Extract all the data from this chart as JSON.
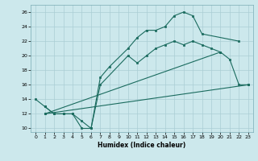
{
  "xlabel": "Humidex (Indice chaleur)",
  "bg_color": "#cce8ec",
  "grid_color": "#aacdd4",
  "line_color": "#1a6b5e",
  "xlim": [
    -0.5,
    23.5
  ],
  "ylim": [
    9.5,
    27.0
  ],
  "xticks": [
    0,
    1,
    2,
    3,
    4,
    5,
    6,
    7,
    8,
    9,
    10,
    11,
    12,
    13,
    14,
    15,
    16,
    17,
    18,
    19,
    20,
    21,
    22,
    23
  ],
  "yticks": [
    10,
    12,
    14,
    16,
    18,
    20,
    22,
    24,
    26
  ],
  "line1_x": [
    0,
    1,
    2,
    3,
    4,
    5,
    6,
    7,
    8,
    10,
    11,
    12,
    13,
    14,
    15,
    16,
    17,
    18,
    22
  ],
  "line1_y": [
    14,
    13,
    12,
    12,
    12,
    10,
    10,
    17,
    18.5,
    21,
    22.5,
    23.5,
    23.5,
    24,
    25.5,
    26,
    25.5,
    23,
    22
  ],
  "line2_x": [
    1,
    2,
    3,
    4,
    5,
    6,
    7,
    10,
    11,
    12,
    13,
    14,
    15,
    16,
    17,
    18,
    19,
    20,
    21,
    22,
    23
  ],
  "line2_y": [
    13,
    12,
    12,
    12,
    11,
    10,
    16,
    20,
    19,
    20,
    21,
    21.5,
    22,
    21.5,
    22,
    21.5,
    21,
    20.5,
    19.5,
    16,
    16
  ],
  "line3_x": [
    1,
    23
  ],
  "line3_y": [
    12,
    16
  ],
  "line4_x": [
    1,
    20
  ],
  "line4_y": [
    12,
    20.5
  ]
}
